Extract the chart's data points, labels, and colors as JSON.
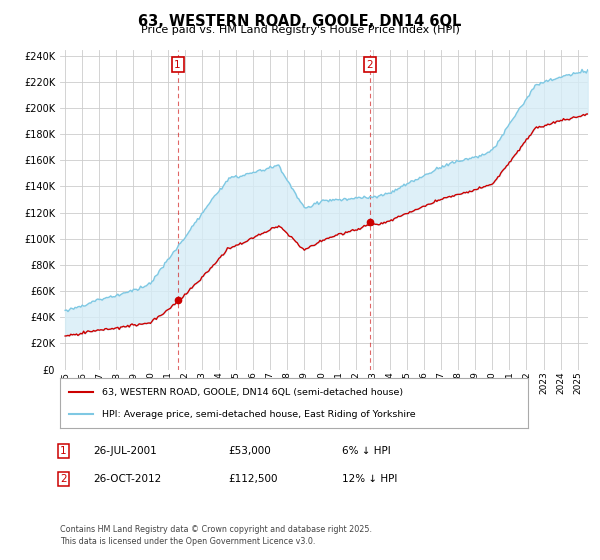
{
  "title": "63, WESTERN ROAD, GOOLE, DN14 6QL",
  "subtitle": "Price paid vs. HM Land Registry's House Price Index (HPI)",
  "hpi_label": "HPI: Average price, semi-detached house, East Riding of Yorkshire",
  "property_label": "63, WESTERN ROAD, GOOLE, DN14 6QL (semi-detached house)",
  "sale1_date": "26-JUL-2001",
  "sale1_price": 53000,
  "sale1_pct": "6% ↓ HPI",
  "sale2_date": "26-OCT-2012",
  "sale2_price": 112500,
  "sale2_pct": "12% ↓ HPI",
  "ylim": [
    0,
    244000
  ],
  "yticks": [
    0,
    20000,
    40000,
    60000,
    80000,
    100000,
    120000,
    140000,
    160000,
    180000,
    200000,
    220000,
    240000
  ],
  "hpi_color": "#7ec8e3",
  "hpi_fill_color": "#d6edf7",
  "property_color": "#cc0000",
  "grid_color": "#cccccc",
  "bg_color": "#ffffff",
  "footer": "Contains HM Land Registry data © Crown copyright and database right 2025.\nThis data is licensed under the Open Government Licence v3.0."
}
